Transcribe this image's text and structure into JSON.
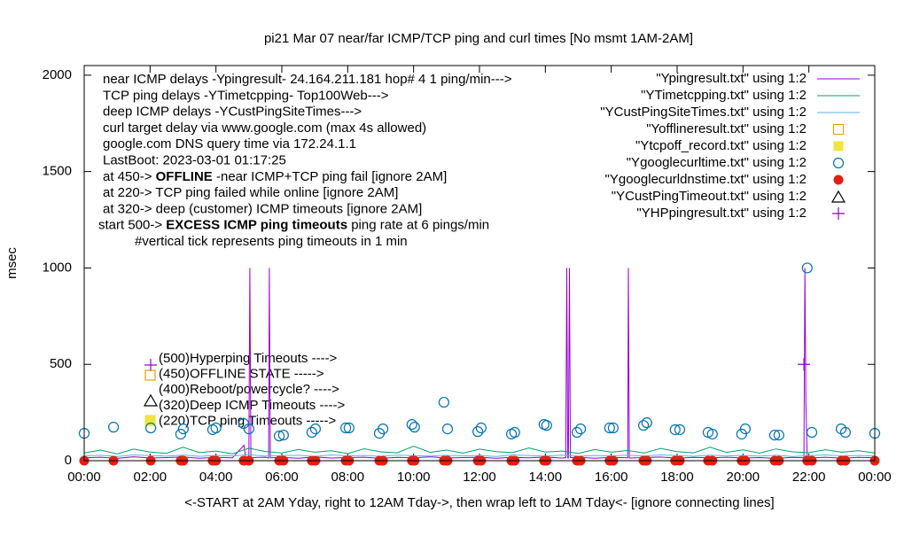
{
  "chart_data": {
    "type": "line",
    "title": "pi21 Mar 07  near/far ICMP/TCP ping and curl times [No msmt 1AM-2AM]",
    "ylabel": "msec",
    "xlabel": "<-START at 2AM Yday, right to 12AM Tday->, then wrap left to 1AM Tday<- [ignore connecting lines]",
    "xlim": [
      0,
      24
    ],
    "ylim": [
      0,
      2050
    ],
    "xticks": [
      {
        "value": 0,
        "label": "00:00"
      },
      {
        "value": 2,
        "label": "02:00"
      },
      {
        "value": 4,
        "label": "04:00"
      },
      {
        "value": 6,
        "label": "06:00"
      },
      {
        "value": 8,
        "label": "08:00"
      },
      {
        "value": 10,
        "label": "10:00"
      },
      {
        "value": 12,
        "label": "12:00"
      },
      {
        "value": 14,
        "label": "14:00"
      },
      {
        "value": 16,
        "label": "16:00"
      },
      {
        "value": 18,
        "label": "18:00"
      },
      {
        "value": 20,
        "label": "20:00"
      },
      {
        "value": 22,
        "label": "22:00"
      },
      {
        "value": 24,
        "label": "00:00"
      }
    ],
    "yticks": [
      0,
      500,
      1000,
      1500,
      2000
    ],
    "legend": "top-right",
    "annotations": [
      {
        "pre": "near ICMP delays -Ypingresult- 24.164.211.181 hop# 4 1 ping/min--->"
      },
      {
        "pre": "TCP ping delays -YTimetcpping- Top100Web--->"
      },
      {
        "pre": "deep ICMP delays -YCustPingSiteTimes--->"
      },
      {
        "pre": "curl target delay via www.google.com (max 4s allowed)"
      },
      {
        "pre": "google.com DNS query time via 172.24.1.1"
      },
      {
        "pre": "LastBoot: 2023-03-01 01:17:25"
      },
      {
        "pre": "at 450-> ",
        "bold": "OFFLINE",
        "post": " -near ICMP+TCP ping fail [ignore 2AM]"
      },
      {
        "pre": "at 220-> TCP ping failed while online [ignore 2AM]"
      },
      {
        "pre": "at 320-> deep (customer) ICMP timeouts [ignore 2AM]"
      },
      {
        "pre": "start 500-> ",
        "bold": "EXCESS ICMP ping timeouts",
        "post": "  ping rate at 6 pings/min"
      },
      {
        "pre": "#vertical tick represents ping timeouts in 1 min"
      }
    ],
    "key_notes": [
      "(500)Hyperping Timeouts ---->",
      "(450)OFFLINE STATE ----->",
      "(400)Reboot/powercycle? ---->",
      "(320)Deep ICMP Timeouts ---->",
      "(220)TCP ping Timeouts ----->"
    ],
    "series": [
      {
        "name": "\"Ypingresult.txt\" using 1:2",
        "color": "#9400d3",
        "style": "line",
        "x": [
          0,
          0.5,
          1,
          1.5,
          2,
          2.5,
          3,
          3.5,
          4,
          4.5,
          4.85,
          4.9,
          5,
          5.03,
          5.06,
          5.5,
          5.6,
          5.62,
          5.65,
          6,
          6.5,
          7,
          7.5,
          8,
          8.5,
          9,
          9.5,
          10,
          10.5,
          11,
          11.5,
          12,
          12.5,
          13,
          13.5,
          14,
          14.5,
          14.62,
          14.65,
          14.68,
          14.7,
          14.73,
          14.76,
          15,
          15.5,
          16,
          16.5,
          16.52,
          16.55,
          17,
          17.5,
          18,
          18.5,
          19,
          19.5,
          20,
          20.5,
          21,
          21.5,
          21.85,
          21.88,
          21.91,
          21.95,
          22,
          22.5,
          23,
          23.5,
          24
        ],
        "values": [
          15,
          18,
          12,
          20,
          14,
          16,
          19,
          13,
          17,
          15,
          80,
          15,
          14,
          1000,
          16,
          18,
          14,
          1000,
          15,
          17,
          13,
          19,
          14,
          16,
          18,
          12,
          17,
          15,
          20,
          14,
          16,
          18,
          13,
          17,
          15,
          19,
          14,
          16,
          1000,
          15,
          14,
          1000,
          16,
          18,
          13,
          17,
          15,
          1000,
          14,
          16,
          19,
          13,
          17,
          15,
          18,
          14,
          16,
          12,
          17,
          15,
          1000,
          300,
          16,
          14,
          18,
          13,
          17,
          15
        ]
      },
      {
        "name": "\"YTimetcpping.txt\" using 1:2",
        "color": "#009e73",
        "style": "line",
        "x": [
          0,
          0.5,
          1,
          1.5,
          2,
          2.5,
          3,
          3.5,
          4,
          4.5,
          5,
          5.5,
          6,
          6.5,
          7,
          7.5,
          8,
          8.5,
          9,
          9.5,
          10,
          10.5,
          11,
          11.5,
          12,
          12.5,
          13,
          13.5,
          14,
          14.5,
          15,
          15.5,
          16,
          16.5,
          17,
          17.5,
          18,
          18.5,
          19,
          19.5,
          20,
          20.5,
          21,
          21.5,
          22,
          22.5,
          23,
          23.5,
          24
        ],
        "values": [
          40,
          55,
          35,
          60,
          45,
          38,
          70,
          42,
          50,
          36,
          65,
          48,
          40,
          58,
          44,
          52,
          37,
          62,
          46,
          41,
          75,
          43,
          55,
          39,
          60,
          47,
          42,
          66,
          45,
          50,
          38,
          58,
          44,
          53,
          40,
          64,
          47,
          41,
          70,
          43,
          56,
          39,
          61,
          46,
          42,
          57,
          44,
          52,
          40
        ]
      },
      {
        "name": "\"YCustPingSiteTimes.txt\" using 1:2",
        "color": "#56b4e9",
        "style": "line",
        "x": [
          0,
          0.5,
          1,
          1.5,
          2,
          2.5,
          3,
          3.5,
          4,
          4.5,
          5,
          5.5,
          6,
          6.5,
          7,
          7.5,
          8,
          8.5,
          9,
          9.5,
          10,
          10.5,
          11,
          11.5,
          12,
          12.5,
          13,
          13.5,
          14,
          14.5,
          15,
          15.5,
          16,
          16.5,
          17,
          17.5,
          18,
          18.5,
          19,
          19.5,
          20,
          20.5,
          21,
          21.5,
          22,
          22.5,
          23,
          23.5,
          24
        ],
        "values": [
          25,
          28,
          22,
          30,
          26,
          24,
          29,
          23,
          27,
          25,
          31,
          24,
          26,
          28,
          22,
          30,
          25,
          27,
          23,
          29,
          26,
          24,
          28,
          25,
          27,
          22,
          30,
          26,
          24,
          29,
          23,
          27,
          25,
          28,
          24,
          30,
          26,
          23,
          29,
          25,
          27,
          24,
          28,
          22,
          26,
          30,
          25,
          27,
          24
        ]
      },
      {
        "name": "\"Yofflineresult.txt\" using 1:2",
        "color": "#e69f00",
        "style": "open-square",
        "x": [],
        "values": []
      },
      {
        "name": "\"Ytcpoff_record.txt\" using 1:2",
        "color": "#f0e442",
        "style": "filled-square",
        "x": [],
        "values": []
      },
      {
        "name": "\"Ygooglecurltime.txt\" using 1:2",
        "color": "#0072b2",
        "style": "open-circle",
        "x": [
          0,
          0.89,
          2.02,
          2.93,
          3.01,
          3.9,
          4,
          4.84,
          5,
          5.92,
          6.05,
          6.91,
          7.02,
          7.94,
          8.04,
          8.96,
          9.07,
          9.95,
          10.03,
          10.92,
          11.03,
          11.95,
          12.05,
          12.97,
          13.07,
          13.96,
          14.04,
          14.96,
          15.07,
          15.95,
          16.06,
          16.98,
          17.08,
          17.94,
          18.08,
          18.94,
          19.07,
          19.96,
          20.07,
          20.96,
          21.09,
          21.95,
          22.09,
          22.98,
          23.11,
          24
        ],
        "values": [
          142,
          174,
          170,
          138,
          165,
          161,
          170,
          193,
          165,
          128,
          133,
          147,
          165,
          170,
          170,
          142,
          165,
          188,
          174,
          303,
          165,
          151,
          170,
          138,
          147,
          188,
          183,
          147,
          165,
          170,
          170,
          183,
          197,
          161,
          161,
          147,
          138,
          138,
          165,
          133,
          133,
          1000,
          147,
          165,
          147,
          142
        ]
      },
      {
        "name": "\"Ygooglecurldnstime.txt\" using 1:2",
        "color": "#e51e10",
        "style": "filled-circle",
        "x": [
          0,
          0.89,
          2.02,
          2.93,
          3.01,
          3.9,
          4,
          4.84,
          5,
          5.92,
          6.05,
          6.91,
          7.02,
          7.94,
          8.04,
          8.96,
          9.07,
          9.95,
          10.03,
          10.92,
          11.03,
          11.95,
          12.05,
          12.97,
          13.07,
          13.96,
          14.04,
          14.96,
          15.07,
          15.95,
          16.06,
          16.98,
          17.08,
          17.94,
          18.08,
          18.94,
          19.07,
          19.96,
          20.07,
          20.96,
          21.09,
          21.95,
          22.09,
          22.98,
          23.11,
          24
        ],
        "values": [
          0,
          0,
          0,
          0,
          0,
          0,
          0,
          0,
          0,
          0,
          0,
          0,
          0,
          0,
          0,
          0,
          0,
          0,
          0,
          0,
          0,
          0,
          0,
          0,
          0,
          0,
          0,
          0,
          0,
          0,
          0,
          0,
          0,
          0,
          0,
          0,
          0,
          0,
          0,
          0,
          0,
          0,
          0,
          0,
          0,
          0
        ]
      },
      {
        "name": "\"YCustPingTimeout.txt\" using 1:2",
        "color": "#000000",
        "style": "open-triangle",
        "x": [],
        "values": []
      },
      {
        "name": "\"YHPpingresult.txt\" using 1:2",
        "color": "#9400d3",
        "style": "plus",
        "x": [
          21.85
        ],
        "values": [
          500
        ]
      }
    ]
  }
}
